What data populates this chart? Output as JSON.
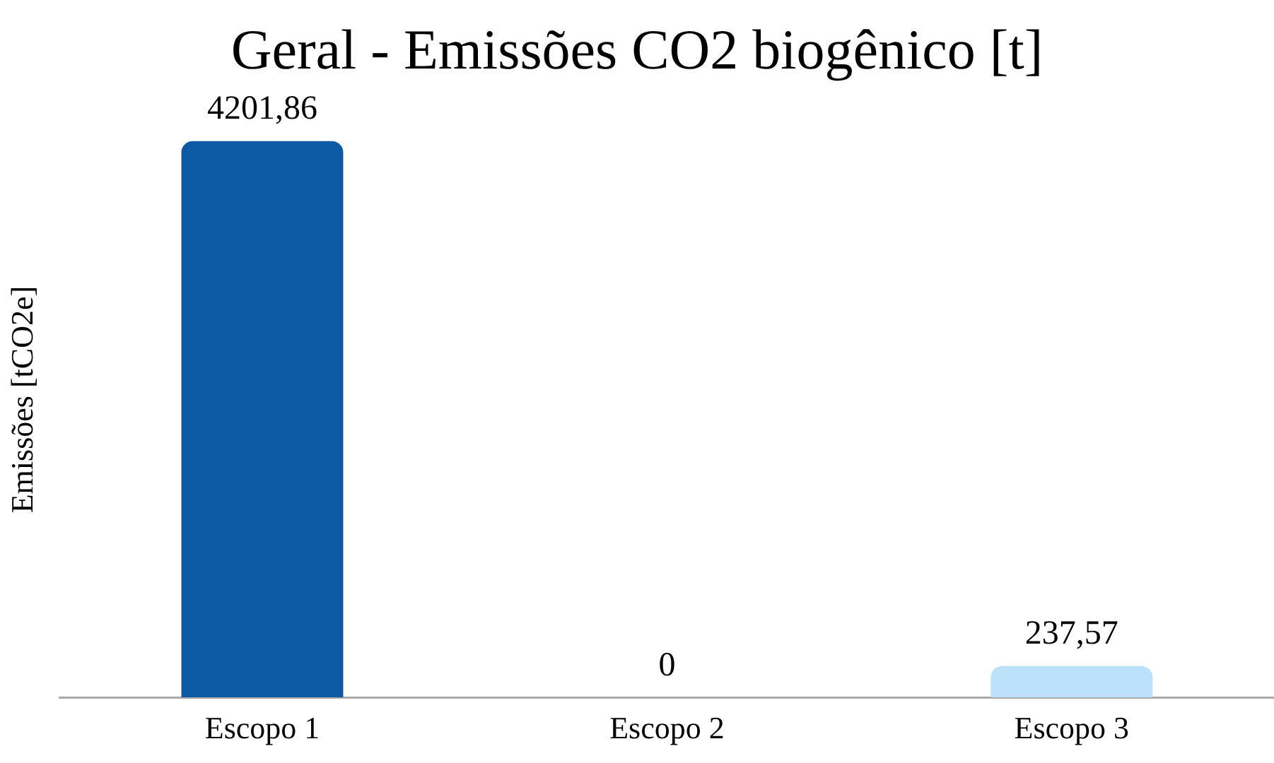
{
  "chart_data": {
    "type": "bar",
    "title": "Geral - Emissões CO2 biogênico [t]",
    "ylabel": "Emissões [tCO2e]",
    "categories": [
      "Escopo 1",
      "Escopo 2",
      "Escopo 3"
    ],
    "values": [
      4201.86,
      0,
      237.57
    ],
    "colors": [
      "#0b5aa3",
      "#5b9bd5",
      "#bde0fb"
    ],
    "value_labels": [
      "4201,86",
      "0",
      "237,57"
    ],
    "grid": false,
    "legend": false
  }
}
